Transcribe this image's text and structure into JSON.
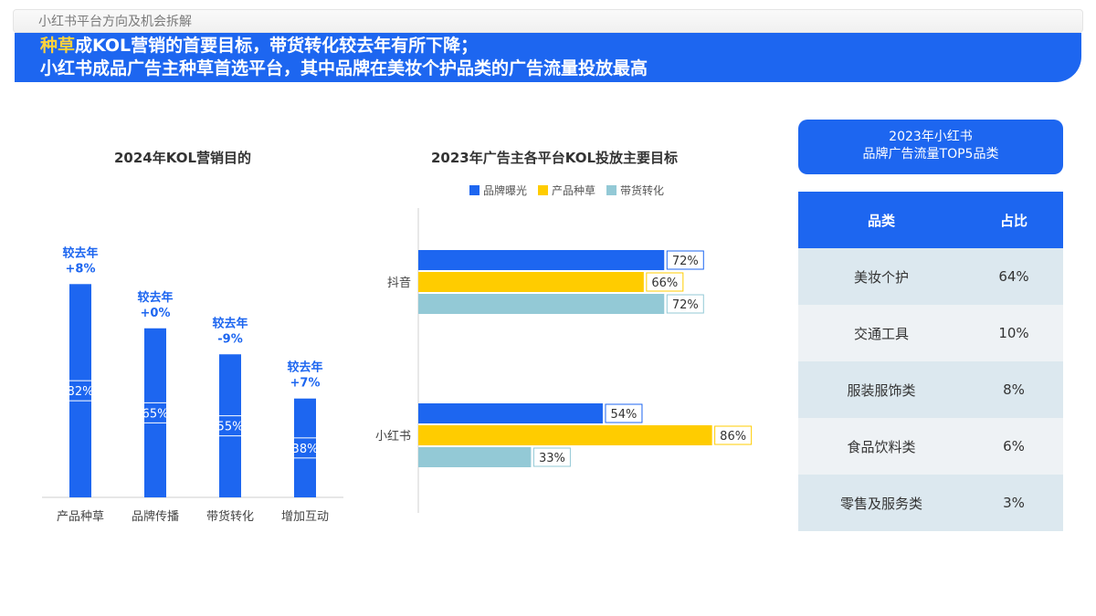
{
  "breadcrumb": "小红书平台方向及机会拆解",
  "headline": {
    "line1_highlight": "种草",
    "line1_rest": "成KOL营销的首要目标，带货转化较去年有所下降；",
    "line2": "小红书成品广告主种草首选平台，其中品牌在美妆个护品类的广告流量投放最高"
  },
  "colors": {
    "primary_blue": "#1d66f0",
    "yellow": "#ffcc00",
    "light_blue": "#93c9d6",
    "label_blue": "#1d66f0"
  },
  "chart_data": [
    {
      "type": "bar",
      "title": "2024年KOL营销目的",
      "categories": [
        "产品种草",
        "品牌传播",
        "带货转化",
        "增加互动"
      ],
      "values": [
        82,
        65,
        55,
        38
      ],
      "value_labels": [
        "82%",
        "65%",
        "55%",
        "38%"
      ],
      "change_prefix": "较去年",
      "changes": [
        "+8%",
        "+0%",
        "-9%",
        "+7%"
      ],
      "ylim": [
        0,
        100
      ]
    },
    {
      "type": "bar",
      "orientation": "horizontal",
      "title": "2023年广告主各平台KOL投放主要目标",
      "categories": [
        "抖音",
        "小红书"
      ],
      "series": [
        {
          "name": "品牌曝光",
          "values": [
            72,
            54
          ],
          "labels": [
            "72%",
            "54%"
          ],
          "color": "#1d66f0"
        },
        {
          "name": "产品种草",
          "values": [
            66,
            86
          ],
          "labels": [
            "66%",
            "86%"
          ],
          "color": "#ffcc00"
        },
        {
          "name": "带货转化",
          "values": [
            72,
            33
          ],
          "labels": [
            "72%",
            "33%"
          ],
          "color": "#93c9d6"
        }
      ],
      "xlim": [
        0,
        100
      ],
      "legend": "top"
    },
    {
      "type": "table",
      "title_lines": [
        "2023年小红书",
        "品牌广告流量TOP5品类"
      ],
      "columns": [
        "品类",
        "占比"
      ],
      "rows": [
        [
          "美妆个护",
          "64%"
        ],
        [
          "交通工具",
          "10%"
        ],
        [
          "服装服饰类",
          "8%"
        ],
        [
          "食品饮料类",
          "6%"
        ],
        [
          "零售及服务类",
          "3%"
        ]
      ]
    }
  ]
}
